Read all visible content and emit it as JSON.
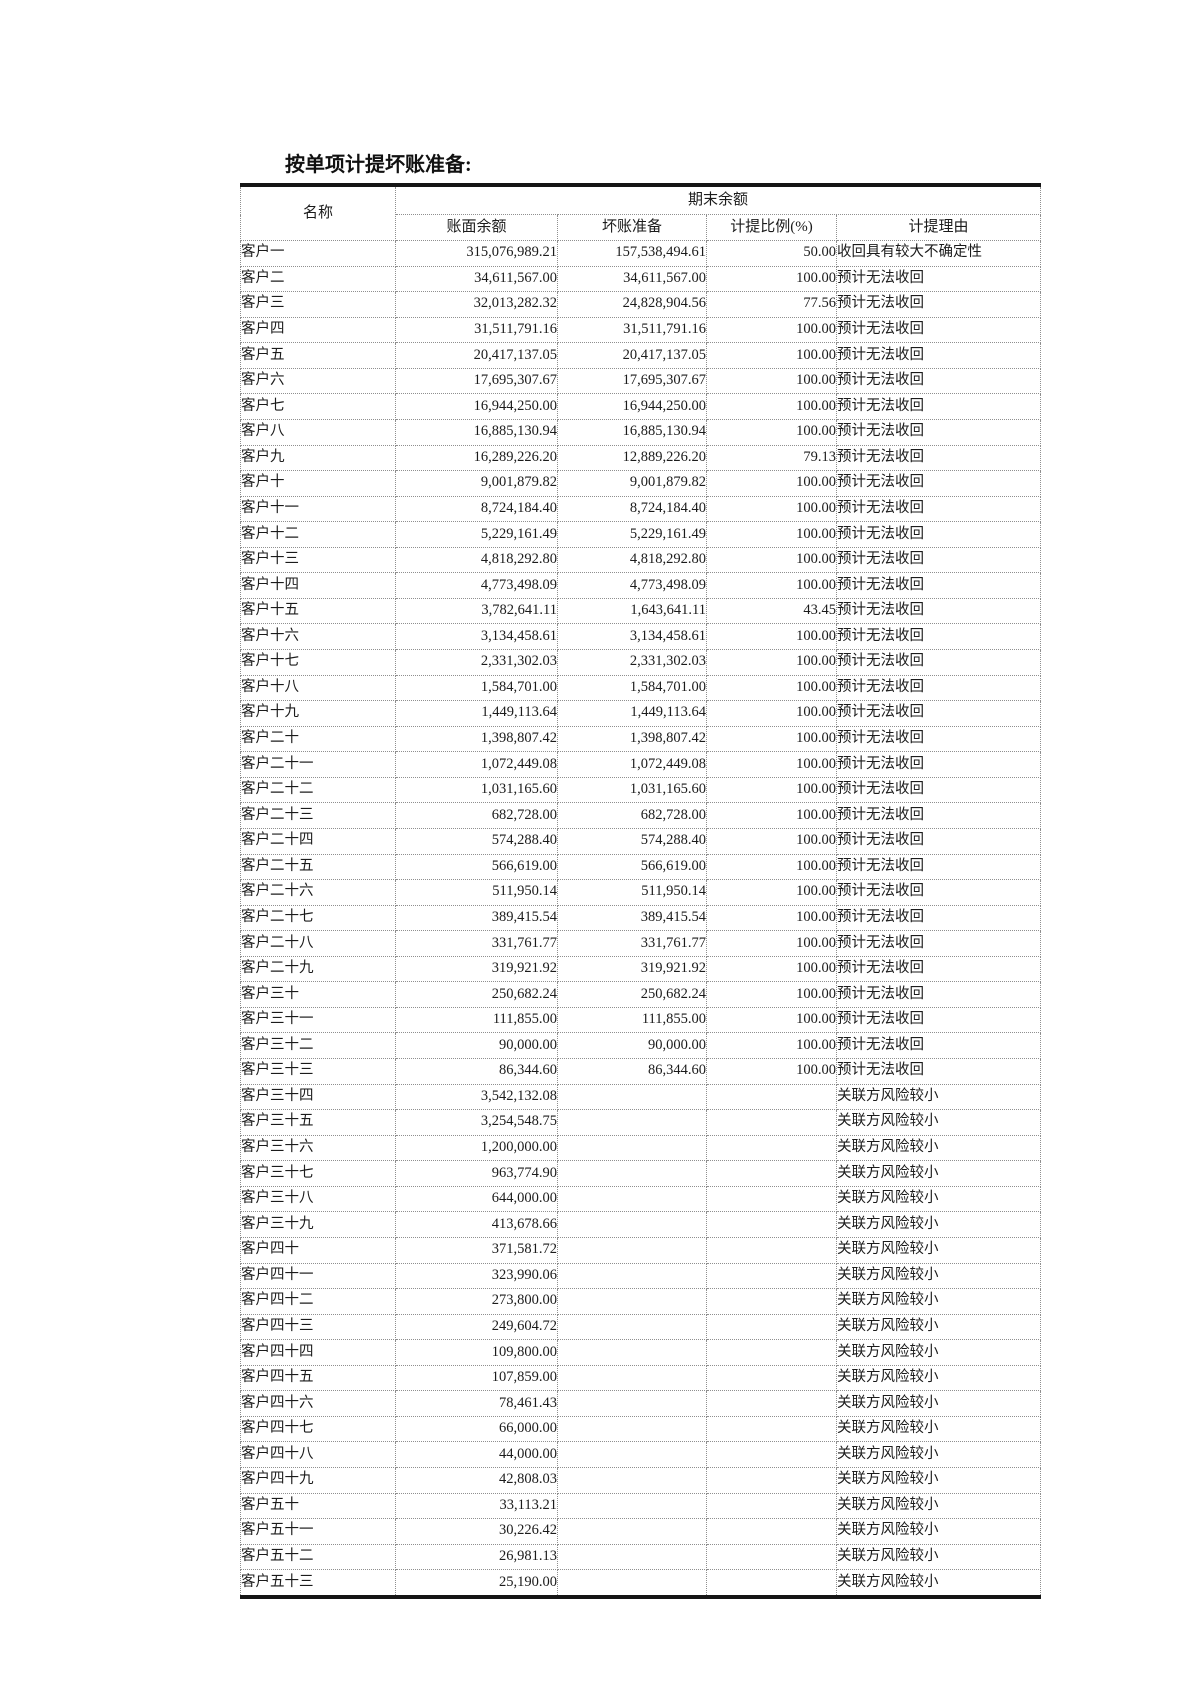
{
  "page": {
    "title": "按单项计提坏账准备:"
  },
  "table": {
    "header": {
      "name": "名称",
      "ending_balance_group": "期末余额",
      "columns": [
        "账面余额",
        "坏账准备",
        "计提比例(%)",
        "计提理由"
      ]
    },
    "rows": [
      {
        "name": "客户一",
        "book_balance": "315,076,989.21",
        "bad_debt_provision": "157,538,494.61",
        "provision_ratio": "50.00",
        "reason": "收回具有较大不确定性"
      },
      {
        "name": "客户二",
        "book_balance": "34,611,567.00",
        "bad_debt_provision": "34,611,567.00",
        "provision_ratio": "100.00",
        "reason": "预计无法收回"
      },
      {
        "name": "客户三",
        "book_balance": "32,013,282.32",
        "bad_debt_provision": "24,828,904.56",
        "provision_ratio": "77.56",
        "reason": "预计无法收回"
      },
      {
        "name": "客户四",
        "book_balance": "31,511,791.16",
        "bad_debt_provision": "31,511,791.16",
        "provision_ratio": "100.00",
        "reason": "预计无法收回"
      },
      {
        "name": "客户五",
        "book_balance": "20,417,137.05",
        "bad_debt_provision": "20,417,137.05",
        "provision_ratio": "100.00",
        "reason": "预计无法收回"
      },
      {
        "name": "客户六",
        "book_balance": "17,695,307.67",
        "bad_debt_provision": "17,695,307.67",
        "provision_ratio": "100.00",
        "reason": "预计无法收回"
      },
      {
        "name": "客户七",
        "book_balance": "16,944,250.00",
        "bad_debt_provision": "16,944,250.00",
        "provision_ratio": "100.00",
        "reason": "预计无法收回"
      },
      {
        "name": "客户八",
        "book_balance": "16,885,130.94",
        "bad_debt_provision": "16,885,130.94",
        "provision_ratio": "100.00",
        "reason": "预计无法收回"
      },
      {
        "name": "客户九",
        "book_balance": "16,289,226.20",
        "bad_debt_provision": "12,889,226.20",
        "provision_ratio": "79.13",
        "reason": "预计无法收回"
      },
      {
        "name": "客户十",
        "book_balance": "9,001,879.82",
        "bad_debt_provision": "9,001,879.82",
        "provision_ratio": "100.00",
        "reason": "预计无法收回"
      },
      {
        "name": "客户十一",
        "book_balance": "8,724,184.40",
        "bad_debt_provision": "8,724,184.40",
        "provision_ratio": "100.00",
        "reason": "预计无法收回"
      },
      {
        "name": "客户十二",
        "book_balance": "5,229,161.49",
        "bad_debt_provision": "5,229,161.49",
        "provision_ratio": "100.00",
        "reason": "预计无法收回"
      },
      {
        "name": "客户十三",
        "book_balance": "4,818,292.80",
        "bad_debt_provision": "4,818,292.80",
        "provision_ratio": "100.00",
        "reason": "预计无法收回"
      },
      {
        "name": "客户十四",
        "book_balance": "4,773,498.09",
        "bad_debt_provision": "4,773,498.09",
        "provision_ratio": "100.00",
        "reason": "预计无法收回"
      },
      {
        "name": "客户十五",
        "book_balance": "3,782,641.11",
        "bad_debt_provision": "1,643,641.11",
        "provision_ratio": "43.45",
        "reason": "预计无法收回"
      },
      {
        "name": "客户十六",
        "book_balance": "3,134,458.61",
        "bad_debt_provision": "3,134,458.61",
        "provision_ratio": "100.00",
        "reason": "预计无法收回"
      },
      {
        "name": "客户十七",
        "book_balance": "2,331,302.03",
        "bad_debt_provision": "2,331,302.03",
        "provision_ratio": "100.00",
        "reason": "预计无法收回"
      },
      {
        "name": "客户十八",
        "book_balance": "1,584,701.00",
        "bad_debt_provision": "1,584,701.00",
        "provision_ratio": "100.00",
        "reason": "预计无法收回"
      },
      {
        "name": "客户十九",
        "book_balance": "1,449,113.64",
        "bad_debt_provision": "1,449,113.64",
        "provision_ratio": "100.00",
        "reason": "预计无法收回"
      },
      {
        "name": "客户二十",
        "book_balance": "1,398,807.42",
        "bad_debt_provision": "1,398,807.42",
        "provision_ratio": "100.00",
        "reason": "预计无法收回"
      },
      {
        "name": "客户二十一",
        "book_balance": "1,072,449.08",
        "bad_debt_provision": "1,072,449.08",
        "provision_ratio": "100.00",
        "reason": "预计无法收回"
      },
      {
        "name": "客户二十二",
        "book_balance": "1,031,165.60",
        "bad_debt_provision": "1,031,165.60",
        "provision_ratio": "100.00",
        "reason": "预计无法收回"
      },
      {
        "name": "客户二十三",
        "book_balance": "682,728.00",
        "bad_debt_provision": "682,728.00",
        "provision_ratio": "100.00",
        "reason": "预计无法收回"
      },
      {
        "name": "客户二十四",
        "book_balance": "574,288.40",
        "bad_debt_provision": "574,288.40",
        "provision_ratio": "100.00",
        "reason": "预计无法收回"
      },
      {
        "name": "客户二十五",
        "book_balance": "566,619.00",
        "bad_debt_provision": "566,619.00",
        "provision_ratio": "100.00",
        "reason": "预计无法收回"
      },
      {
        "name": "客户二十六",
        "book_balance": "511,950.14",
        "bad_debt_provision": "511,950.14",
        "provision_ratio": "100.00",
        "reason": "预计无法收回"
      },
      {
        "name": "客户二十七",
        "book_balance": "389,415.54",
        "bad_debt_provision": "389,415.54",
        "provision_ratio": "100.00",
        "reason": "预计无法收回"
      },
      {
        "name": "客户二十八",
        "book_balance": "331,761.77",
        "bad_debt_provision": "331,761.77",
        "provision_ratio": "100.00",
        "reason": "预计无法收回"
      },
      {
        "name": "客户二十九",
        "book_balance": "319,921.92",
        "bad_debt_provision": "319,921.92",
        "provision_ratio": "100.00",
        "reason": "预计无法收回"
      },
      {
        "name": "客户三十",
        "book_balance": "250,682.24",
        "bad_debt_provision": "250,682.24",
        "provision_ratio": "100.00",
        "reason": "预计无法收回"
      },
      {
        "name": "客户三十一",
        "book_balance": "111,855.00",
        "bad_debt_provision": "111,855.00",
        "provision_ratio": "100.00",
        "reason": "预计无法收回"
      },
      {
        "name": "客户三十二",
        "book_balance": "90,000.00",
        "bad_debt_provision": "90,000.00",
        "provision_ratio": "100.00",
        "reason": "预计无法收回"
      },
      {
        "name": "客户三十三",
        "book_balance": "86,344.60",
        "bad_debt_provision": "86,344.60",
        "provision_ratio": "100.00",
        "reason": "预计无法收回"
      },
      {
        "name": "客户三十四",
        "book_balance": "3,542,132.08",
        "bad_debt_provision": "",
        "provision_ratio": "",
        "reason": "关联方风险较小"
      },
      {
        "name": "客户三十五",
        "book_balance": "3,254,548.75",
        "bad_debt_provision": "",
        "provision_ratio": "",
        "reason": "关联方风险较小"
      },
      {
        "name": "客户三十六",
        "book_balance": "1,200,000.00",
        "bad_debt_provision": "",
        "provision_ratio": "",
        "reason": "关联方风险较小"
      },
      {
        "name": "客户三十七",
        "book_balance": "963,774.90",
        "bad_debt_provision": "",
        "provision_ratio": "",
        "reason": "关联方风险较小"
      },
      {
        "name": "客户三十八",
        "book_balance": "644,000.00",
        "bad_debt_provision": "",
        "provision_ratio": "",
        "reason": "关联方风险较小"
      },
      {
        "name": "客户三十九",
        "book_balance": "413,678.66",
        "bad_debt_provision": "",
        "provision_ratio": "",
        "reason": "关联方风险较小"
      },
      {
        "name": "客户四十",
        "book_balance": "371,581.72",
        "bad_debt_provision": "",
        "provision_ratio": "",
        "reason": "关联方风险较小"
      },
      {
        "name": "客户四十一",
        "book_balance": "323,990.06",
        "bad_debt_provision": "",
        "provision_ratio": "",
        "reason": "关联方风险较小"
      },
      {
        "name": "客户四十二",
        "book_balance": "273,800.00",
        "bad_debt_provision": "",
        "provision_ratio": "",
        "reason": "关联方风险较小"
      },
      {
        "name": "客户四十三",
        "book_balance": "249,604.72",
        "bad_debt_provision": "",
        "provision_ratio": "",
        "reason": "关联方风险较小"
      },
      {
        "name": "客户四十四",
        "book_balance": "109,800.00",
        "bad_debt_provision": "",
        "provision_ratio": "",
        "reason": "关联方风险较小"
      },
      {
        "name": "客户四十五",
        "book_balance": "107,859.00",
        "bad_debt_provision": "",
        "provision_ratio": "",
        "reason": "关联方风险较小"
      },
      {
        "name": "客户四十六",
        "book_balance": "78,461.43",
        "bad_debt_provision": "",
        "provision_ratio": "",
        "reason": "关联方风险较小"
      },
      {
        "name": "客户四十七",
        "book_balance": "66,000.00",
        "bad_debt_provision": "",
        "provision_ratio": "",
        "reason": "关联方风险较小"
      },
      {
        "name": "客户四十八",
        "book_balance": "44,000.00",
        "bad_debt_provision": "",
        "provision_ratio": "",
        "reason": "关联方风险较小"
      },
      {
        "name": "客户四十九",
        "book_balance": "42,808.03",
        "bad_debt_provision": "",
        "provision_ratio": "",
        "reason": "关联方风险较小"
      },
      {
        "name": "客户五十",
        "book_balance": "33,113.21",
        "bad_debt_provision": "",
        "provision_ratio": "",
        "reason": "关联方风险较小"
      },
      {
        "name": "客户五十一",
        "book_balance": "30,226.42",
        "bad_debt_provision": "",
        "provision_ratio": "",
        "reason": "关联方风险较小"
      },
      {
        "name": "客户五十二",
        "book_balance": "26,981.13",
        "bad_debt_provision": "",
        "provision_ratio": "",
        "reason": "关联方风险较小"
      },
      {
        "name": "客户五十三",
        "book_balance": "25,190.00",
        "bad_debt_provision": "",
        "provision_ratio": "",
        "reason": "关联方风险较小"
      }
    ]
  }
}
